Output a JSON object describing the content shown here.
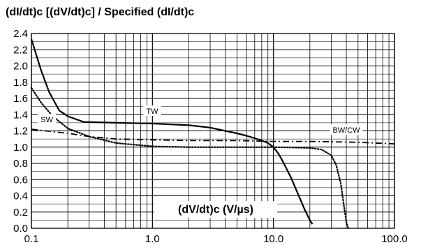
{
  "chart_data": {
    "type": "line",
    "title": "(dI/dt)c [(dV/dt)c] / Specified (dI/dt)c",
    "xlabel": "(dV/dt)c (V/µs)",
    "ylabel": "",
    "xscale": "log",
    "xlim": [
      0.1,
      100.0
    ],
    "ylim": [
      0.0,
      2.4
    ],
    "grid": true,
    "legend": "inline labels",
    "xticks": [
      "0.1",
      "1.0",
      "10.0",
      "100.0"
    ],
    "yticks": [
      "0.0",
      "0.2",
      "0.4",
      "0.6",
      "0.8",
      "1.0",
      "1.2",
      "1.4",
      "1.6",
      "1.8",
      "2.0",
      "2.2",
      "2.4"
    ],
    "series": [
      {
        "name": "TW",
        "style": "solid",
        "x": [
          0.1,
          0.12,
          0.14,
          0.17,
          0.2,
          0.27,
          0.5,
          1.0,
          2.0,
          3.0,
          4.0,
          5.0,
          6.0,
          7.0,
          8.0,
          9.0,
          10.0,
          11.0,
          12.0,
          14.0,
          16.0,
          18.0,
          20.0,
          21.0
        ],
        "y": [
          2.33,
          1.95,
          1.68,
          1.45,
          1.38,
          1.31,
          1.3,
          1.29,
          1.27,
          1.24,
          1.2,
          1.17,
          1.14,
          1.11,
          1.08,
          1.05,
          1.0,
          0.92,
          0.82,
          0.62,
          0.42,
          0.24,
          0.1,
          0.05
        ]
      },
      {
        "name": "SW",
        "style": "dotted",
        "x": [
          0.1,
          0.12,
          0.15,
          0.2,
          0.3,
          0.5,
          1.0,
          2.0,
          5.0,
          10.0,
          20.0,
          25.0,
          30.0,
          33.0,
          36.0,
          38.0,
          40.0,
          41.5
        ],
        "y": [
          1.73,
          1.55,
          1.38,
          1.23,
          1.13,
          1.05,
          1.01,
          1.0,
          1.0,
          1.0,
          0.99,
          0.97,
          0.9,
          0.78,
          0.55,
          0.3,
          0.08,
          0.0
        ]
      },
      {
        "name": "BW/CW",
        "style": "dashdot",
        "x": [
          0.1,
          0.2,
          0.3,
          0.5,
          1.0,
          2.0,
          5.0,
          10.0,
          20.0,
          50.0,
          100.0
        ],
        "y": [
          1.22,
          1.17,
          1.13,
          1.1,
          1.09,
          1.08,
          1.08,
          1.07,
          1.07,
          1.06,
          1.04
        ]
      }
    ]
  }
}
